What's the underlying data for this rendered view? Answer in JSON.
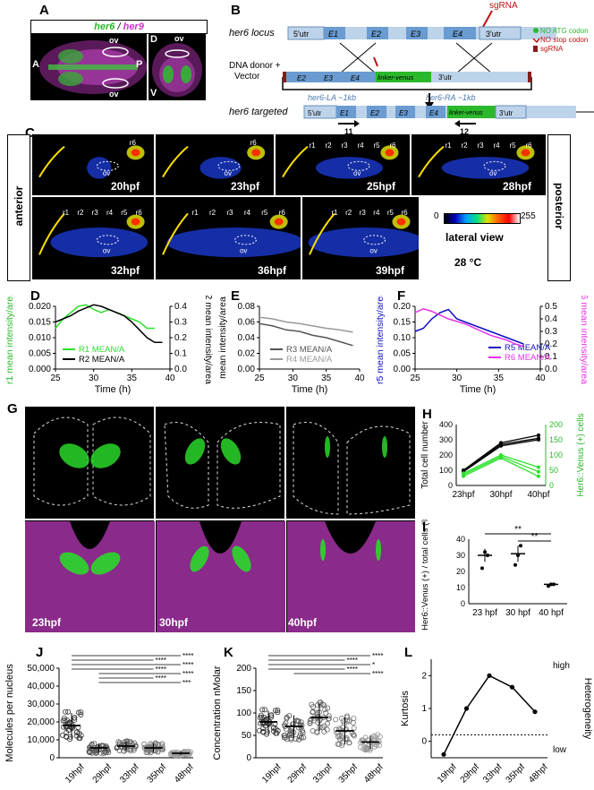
{
  "panels": {
    "A": "A",
    "B": "B",
    "C": "C",
    "D": "D",
    "E": "E",
    "F": "F",
    "G": "G",
    "H": "H",
    "I": "I",
    "J": "J",
    "K": "K",
    "L": "L"
  },
  "panelA": {
    "gene1": "her6",
    "sep": "/",
    "gene2": "her9",
    "ov_top": "ov",
    "ov_bot": "ov",
    "ant": "A",
    "post": "P",
    "subD": "D",
    "ov_d": "ov",
    "ventral": "V"
  },
  "panelB": {
    "locus_label": "her6 locus",
    "utr5": "5'utr",
    "e1": "E1",
    "e2": "E2",
    "e3": "E3",
    "e4": "E4",
    "utr3": "3'utr",
    "sgRNA": "sgRNA",
    "donor_label": "DNA donor +",
    "vector_label": "Vector",
    "linker": "linker-venus",
    "la": "her6-LA ~1kb",
    "ra": "her6-RA ~1kb",
    "legend_atg": "NO ATG codon",
    "legend_stop": "NO stop codon",
    "legend_sg": "sgRNA",
    "targeted_label": "her6 targeted",
    "p11": "11",
    "p12": "12"
  },
  "panelC": {
    "timepoints": [
      "20hpf",
      "23hpf",
      "25hpf",
      "28hpf",
      "32hpf",
      "36hpf",
      "39hpf"
    ],
    "side_left": "anterior",
    "side_right": "posterior",
    "colorbar_min": "0",
    "colorbar_max": "255",
    "view": "lateral view",
    "temp": "28 °C",
    "ov": "ov",
    "rhombomeres": [
      "r1",
      "r2",
      "r3",
      "r4",
      "r5",
      "r6"
    ]
  },
  "panelG": {
    "timepoints": [
      "23hpf",
      "30hpf",
      "40hpf"
    ]
  },
  "chart_data": [
    {
      "id": "D",
      "type": "line",
      "xlabel": "Time (h)",
      "ylabel_left": "r1 mean intensity/area",
      "ylabel_right": "r2 mean intensity/area",
      "xlim": [
        25,
        40
      ],
      "xticks": [
        25,
        30,
        35,
        40
      ],
      "ylim_left": [
        0,
        0.02
      ],
      "yticks_left": [
        "0.000",
        "0.005",
        "0.010",
        "0.015",
        "0.020"
      ],
      "ylim_right": [
        0,
        0.4
      ],
      "yticks_right": [
        "0.0",
        "0.1",
        "0.2",
        "0.3",
        "0.4"
      ],
      "series": [
        {
          "name": "R1 MEAN/A",
          "color": "#2ee02e",
          "axis": "left",
          "x": [
            25,
            26,
            27,
            28,
            29,
            30,
            31,
            32,
            33,
            34,
            35,
            36,
            37,
            38
          ],
          "y": [
            0.013,
            0.016,
            0.018,
            0.02,
            0.0205,
            0.019,
            0.018,
            0.019,
            0.018,
            0.017,
            0.016,
            0.015,
            0.013,
            0.013
          ]
        },
        {
          "name": "R2 MEAN/A",
          "color": "#000000",
          "axis": "right",
          "x": [
            25,
            26,
            27,
            28,
            29,
            30,
            31,
            32,
            33,
            34,
            35,
            36,
            37,
            38,
            39
          ],
          "y": [
            0.3,
            0.32,
            0.34,
            0.37,
            0.39,
            0.41,
            0.4,
            0.38,
            0.36,
            0.34,
            0.3,
            0.25,
            0.2,
            0.17,
            0.17
          ]
        }
      ]
    },
    {
      "id": "E",
      "type": "line",
      "xlabel": "Time (h)",
      "ylabel": "mean intensity/area",
      "xlim": [
        25,
        40
      ],
      "xticks": [
        25,
        30,
        35,
        40
      ],
      "ylim": [
        0,
        0.08
      ],
      "yticks": [
        "0.00",
        "0.02",
        "0.04",
        "0.06",
        "0.08"
      ],
      "series": [
        {
          "name": "R3 MEAN/A",
          "color": "#555555",
          "x": [
            25,
            27,
            29,
            31,
            33,
            35,
            37,
            39
          ],
          "y": [
            0.058,
            0.055,
            0.05,
            0.048,
            0.043,
            0.04,
            0.035,
            0.03
          ]
        },
        {
          "name": "R4 MEAN/A",
          "color": "#999999",
          "x": [
            25,
            27,
            29,
            31,
            33,
            35,
            37,
            39
          ],
          "y": [
            0.066,
            0.064,
            0.06,
            0.058,
            0.055,
            0.052,
            0.05,
            0.047
          ]
        }
      ]
    },
    {
      "id": "F",
      "type": "line",
      "xlabel": "Time (h)",
      "ylabel_left": "r5 mean intensity/area",
      "ylabel_right": "r6 mean intensity/area",
      "xlim": [
        25,
        40
      ],
      "xticks": [
        25,
        30,
        35,
        40
      ],
      "ylim_left": [
        0,
        0.2
      ],
      "yticks_left": [
        "0.00",
        "0.05",
        "0.10",
        "0.15",
        "0.20"
      ],
      "ylim_right": [
        0,
        0.5
      ],
      "yticks_right": [
        "0.0",
        "0.1",
        "0.2",
        "0.3",
        "0.4",
        "0.5"
      ],
      "series": [
        {
          "name": "R5 MEAN/A",
          "color": "#1010c0",
          "axis": "left",
          "x": [
            25,
            26,
            27,
            28,
            29,
            30,
            31,
            32,
            33,
            34,
            35,
            36,
            37,
            38
          ],
          "y": [
            0.12,
            0.13,
            0.16,
            0.18,
            0.19,
            0.16,
            0.15,
            0.14,
            0.13,
            0.12,
            0.11,
            0.1,
            0.09,
            0.08
          ]
        },
        {
          "name": "R6 MEAN/A",
          "color": "#e830e8",
          "axis": "right",
          "x": [
            25,
            26,
            27,
            28,
            29,
            30,
            31,
            32,
            33,
            34,
            35,
            36,
            37,
            38
          ],
          "y": [
            0.45,
            0.48,
            0.46,
            0.43,
            0.4,
            0.38,
            0.36,
            0.33,
            0.3,
            0.27,
            0.25,
            0.23,
            0.2,
            0.18
          ]
        }
      ]
    },
    {
      "id": "H",
      "type": "line",
      "ylabel_left": "Total cell number",
      "ylabel_right": "Her6::Venus (+) cells",
      "categories": [
        "23hpf",
        "30hpf",
        "40hpf"
      ],
      "ylim_left": [
        0,
        400
      ],
      "yticks_left": [
        "0",
        "100",
        "200",
        "300",
        "400"
      ],
      "ylim_right": [
        0,
        200
      ],
      "yticks_right": [
        "0",
        "50",
        "100",
        "150",
        "200"
      ],
      "series": [
        {
          "name": "total-1",
          "color": "#000000",
          "axis": "left",
          "values": [
            100,
            280,
            330
          ]
        },
        {
          "name": "total-2",
          "color": "#000000",
          "axis": "left",
          "values": [
            95,
            270,
            310
          ]
        },
        {
          "name": "total-3",
          "color": "#000000",
          "axis": "left",
          "values": [
            90,
            260,
            300
          ]
        },
        {
          "name": "her6-1",
          "color": "#2ee02e",
          "axis": "right",
          "values": [
            40,
            100,
            60
          ]
        },
        {
          "name": "her6-2",
          "color": "#2ee02e",
          "axis": "right",
          "values": [
            35,
            95,
            45
          ]
        },
        {
          "name": "her6-3",
          "color": "#2ee02e",
          "axis": "right",
          "values": [
            30,
            90,
            30
          ]
        }
      ]
    },
    {
      "id": "I",
      "type": "scatter",
      "ylabel": "Her6::Venus (+) / total cells (%)",
      "categories": [
        "23 hpf",
        "30 hpf",
        "40 hpf"
      ],
      "ylim": [
        0,
        40
      ],
      "yticks": [
        "0",
        "10",
        "20",
        "30",
        "40"
      ],
      "means": [
        30,
        31,
        12
      ],
      "errors": [
        4,
        5,
        1
      ],
      "points": [
        [
          22,
          32,
          30
        ],
        [
          24,
          30,
          36
        ],
        [
          11,
          12,
          12
        ]
      ],
      "sig": [
        "**",
        "**"
      ]
    },
    {
      "id": "J",
      "type": "scatter",
      "ylabel": "Molecules per nucleus",
      "categories": [
        "19hpf",
        "29hpf",
        "33hpf",
        "35hpf",
        "48hpf"
      ],
      "ylim": [
        0,
        50000
      ],
      "yticks": [
        "0",
        "10,000",
        "20,000",
        "30,000",
        "40,000",
        "50,000"
      ],
      "means": [
        18000,
        5500,
        6500,
        5500,
        2500
      ],
      "errors": [
        7000,
        2500,
        2500,
        2500,
        1000
      ],
      "sig": [
        "****",
        "****",
        "****",
        "****",
        "****",
        "****",
        "***"
      ]
    },
    {
      "id": "K",
      "type": "scatter",
      "ylabel": "Concentration nMolar",
      "categories": [
        "19hpf",
        "29hpf",
        "33hpf",
        "35hpf",
        "48hpf"
      ],
      "ylim": [
        0,
        200
      ],
      "yticks": [
        "0",
        "50",
        "100",
        "150",
        "200"
      ],
      "means": [
        80,
        70,
        90,
        60,
        35
      ],
      "errors": [
        25,
        25,
        30,
        30,
        15
      ],
      "sig": [
        "****",
        "****",
        "*",
        "****",
        "****"
      ]
    },
    {
      "id": "L",
      "type": "line",
      "ylabel": "Kurtosis",
      "categories": [
        "19hpf",
        "29hpf",
        "33hpf",
        "35hpf",
        "48hpf"
      ],
      "ylim": [
        -0.5,
        2.5
      ],
      "yticks": [
        "0",
        "1",
        "2"
      ],
      "values": [
        -0.4,
        1.0,
        2.0,
        1.65,
        0.9
      ],
      "baseline": 0.2,
      "side_label": "Heterogeneity",
      "high": "high",
      "low": "low"
    }
  ]
}
